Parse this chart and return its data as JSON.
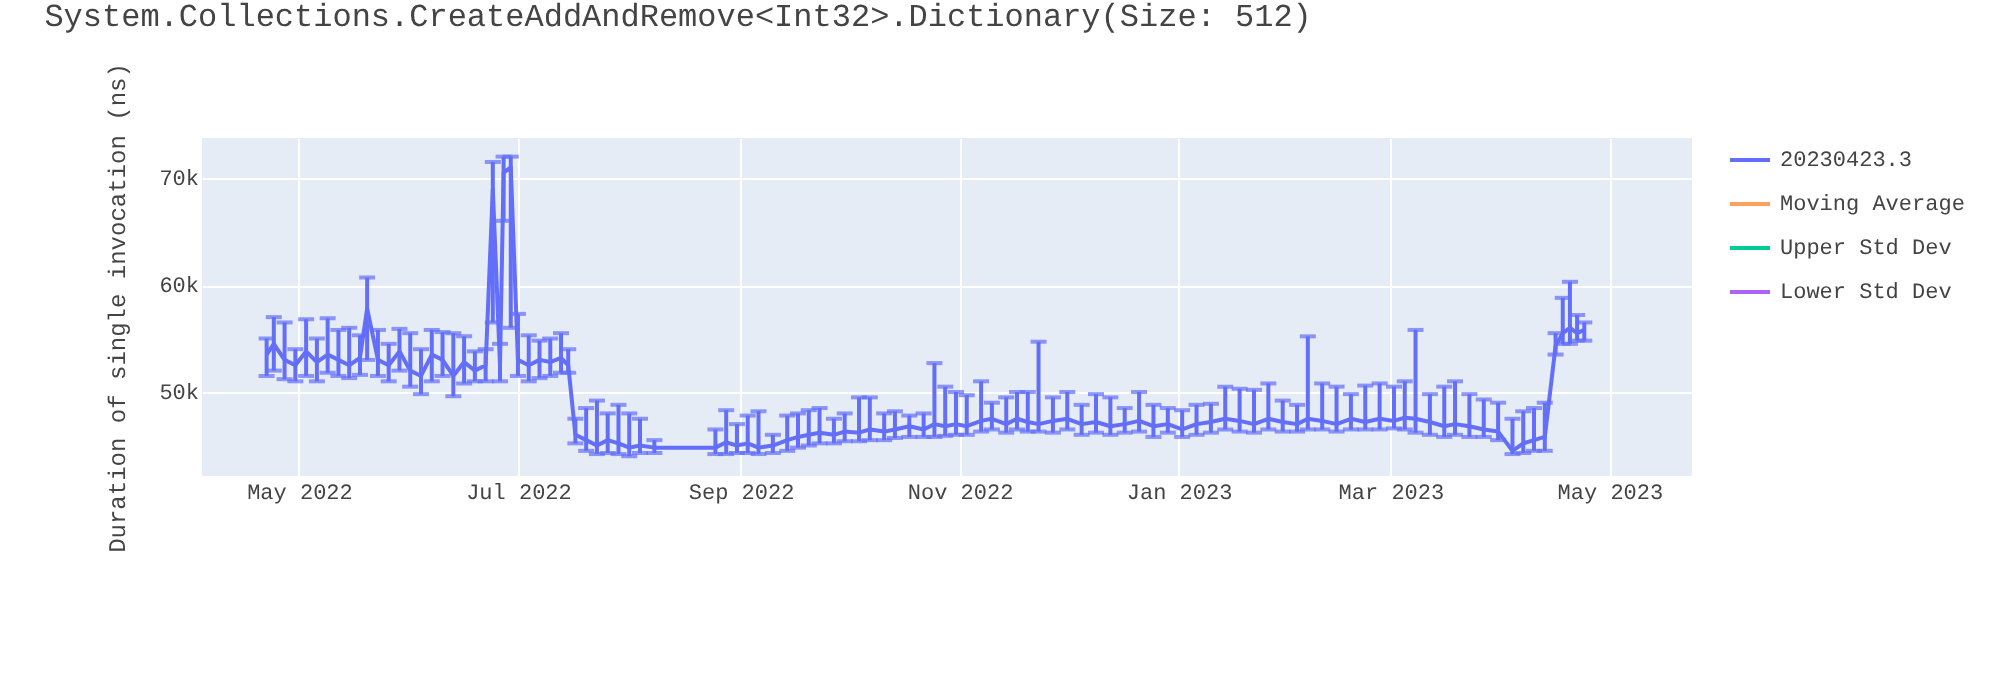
{
  "chart_data": {
    "type": "line",
    "title": "System.Collections.CreateAddAndRemove<Int32>.Dictionary(Size: 512)",
    "ylabel": "Duration of single invocation (ns)",
    "x": [
      "2022-04-22",
      "2022-04-24",
      "2022-04-27",
      "2022-04-30",
      "2022-05-03",
      "2022-05-06",
      "2022-05-09",
      "2022-05-12",
      "2022-05-15",
      "2022-05-18",
      "2022-05-20",
      "2022-05-23",
      "2022-05-26",
      "2022-05-29",
      "2022-06-01",
      "2022-06-04",
      "2022-06-07",
      "2022-06-10",
      "2022-06-13",
      "2022-06-16",
      "2022-06-19",
      "2022-06-22",
      "2022-06-24",
      "2022-06-26",
      "2022-06-27",
      "2022-06-29",
      "2022-07-01",
      "2022-07-04",
      "2022-07-07",
      "2022-07-10",
      "2022-07-13",
      "2022-07-15",
      "2022-07-17",
      "2022-07-20",
      "2022-07-23",
      "2022-07-26",
      "2022-07-29",
      "2022-08-01",
      "2022-08-04",
      "2022-08-08",
      "2022-08-25",
      "2022-08-28",
      "2022-08-31",
      "2022-09-03",
      "2022-09-06",
      "2022-09-10",
      "2022-09-14",
      "2022-09-17",
      "2022-09-20",
      "2022-09-23",
      "2022-09-27",
      "2022-09-30",
      "2022-10-04",
      "2022-10-07",
      "2022-10-11",
      "2022-10-14",
      "2022-10-18",
      "2022-10-22",
      "2022-10-25",
      "2022-10-28",
      "2022-10-31",
      "2022-11-03",
      "2022-11-07",
      "2022-11-10",
      "2022-11-14",
      "2022-11-17",
      "2022-11-20",
      "2022-11-23",
      "2022-11-27",
      "2022-12-01",
      "2022-12-05",
      "2022-12-09",
      "2022-12-13",
      "2022-12-17",
      "2022-12-21",
      "2022-12-25",
      "2022-12-29",
      "2023-01-02",
      "2023-01-06",
      "2023-01-10",
      "2023-01-14",
      "2023-01-18",
      "2023-01-22",
      "2023-01-26",
      "2023-01-30",
      "2023-02-03",
      "2023-02-06",
      "2023-02-10",
      "2023-02-14",
      "2023-02-18",
      "2023-02-22",
      "2023-02-26",
      "2023-03-02",
      "2023-03-05",
      "2023-03-08",
      "2023-03-12",
      "2023-03-16",
      "2023-03-19",
      "2023-03-23",
      "2023-03-27",
      "2023-03-31",
      "2023-04-04",
      "2023-04-07",
      "2023-04-10",
      "2023-04-13",
      "2023-04-16",
      "2023-04-18",
      "2023-04-20",
      "2023-04-22",
      "2023-04-24"
    ],
    "series": [
      {
        "name": "20230423.3",
        "color": "#636efa",
        "values": [
          53500,
          54500,
          53000,
          52500,
          53800,
          52800,
          53500,
          53000,
          52500,
          53200,
          57800,
          53000,
          52500,
          53800,
          52000,
          51500,
          53500,
          53000,
          51500,
          52800,
          52000,
          52500,
          69000,
          52500,
          70500,
          71000,
          53000,
          52500,
          53000,
          52800,
          53200,
          52500,
          46000,
          45500,
          45000,
          45500,
          45200,
          44800,
          45000,
          44800,
          44800,
          45300,
          45000,
          45200,
          44800,
          45000,
          45500,
          45800,
          46000,
          46200,
          46000,
          46300,
          46200,
          46500,
          46300,
          46500,
          46800,
          46500,
          47000,
          46800,
          47000,
          46800,
          47300,
          47500,
          47000,
          47500,
          47200,
          47000,
          47300,
          47500,
          47000,
          47200,
          46800,
          47000,
          47300,
          46800,
          47000,
          46500,
          47000,
          47200,
          47500,
          47300,
          47000,
          47500,
          47200,
          47000,
          47500,
          47300,
          47000,
          47500,
          47200,
          47500,
          47300,
          47600,
          47500,
          47200,
          46800,
          47000,
          46800,
          46500,
          46300,
          44500,
          45200,
          45500,
          45800,
          54300,
          55500,
          56000,
          55500,
          55800
        ],
        "errors": [
          [
            51500,
            55000
          ],
          [
            52000,
            57000
          ],
          [
            51200,
            56500
          ],
          [
            51000,
            54000
          ],
          [
            51500,
            56800
          ],
          [
            51000,
            55000
          ],
          [
            51800,
            56900
          ],
          [
            51500,
            55800
          ],
          [
            51300,
            56000
          ],
          [
            51600,
            55300
          ],
          [
            53000,
            60700
          ],
          [
            51500,
            55800
          ],
          [
            51000,
            54500
          ],
          [
            52000,
            55900
          ],
          [
            50500,
            55500
          ],
          [
            49800,
            54000
          ],
          [
            51000,
            55800
          ],
          [
            51500,
            55600
          ],
          [
            49600,
            55500
          ],
          [
            50800,
            55200
          ],
          [
            51000,
            53800
          ],
          [
            51000,
            54000
          ],
          [
            56500,
            71500
          ],
          [
            51000,
            54500
          ],
          [
            66000,
            72000
          ],
          [
            56000,
            72000
          ],
          [
            51500,
            57300
          ],
          [
            51000,
            55300
          ],
          [
            51300,
            54800
          ],
          [
            51500,
            55000
          ],
          [
            51800,
            55500
          ],
          [
            51800,
            54000
          ],
          [
            45200,
            47500
          ],
          [
            44500,
            48500
          ],
          [
            44200,
            49200
          ],
          [
            44300,
            48000
          ],
          [
            44200,
            48800
          ],
          [
            44000,
            48000
          ],
          [
            44300,
            47500
          ],
          [
            44300,
            45500
          ],
          [
            44200,
            46500
          ],
          [
            44200,
            48300
          ],
          [
            44300,
            47000
          ],
          [
            44300,
            47800
          ],
          [
            44200,
            48200
          ],
          [
            44300,
            46000
          ],
          [
            44500,
            47800
          ],
          [
            44800,
            48000
          ],
          [
            45000,
            48300
          ],
          [
            45200,
            48500
          ],
          [
            45200,
            47500
          ],
          [
            45400,
            48000
          ],
          [
            45400,
            49500
          ],
          [
            45500,
            49500
          ],
          [
            45500,
            48000
          ],
          [
            45700,
            48200
          ],
          [
            45800,
            47800
          ],
          [
            45800,
            48000
          ],
          [
            45800,
            52700
          ],
          [
            45900,
            50500
          ],
          [
            46000,
            50000
          ],
          [
            46000,
            49700
          ],
          [
            46300,
            51000
          ],
          [
            46500,
            49000
          ],
          [
            46200,
            49500
          ],
          [
            46500,
            50000
          ],
          [
            46300,
            50000
          ],
          [
            46300,
            54700
          ],
          [
            46200,
            49500
          ],
          [
            46500,
            50000
          ],
          [
            46000,
            48800
          ],
          [
            46200,
            49800
          ],
          [
            46000,
            49500
          ],
          [
            46200,
            48500
          ],
          [
            46300,
            50000
          ],
          [
            45800,
            48800
          ],
          [
            46200,
            48500
          ],
          [
            45800,
            48300
          ],
          [
            46000,
            48800
          ],
          [
            46200,
            48900
          ],
          [
            46500,
            50500
          ],
          [
            46300,
            50300
          ],
          [
            46200,
            50200
          ],
          [
            46500,
            50800
          ],
          [
            46300,
            49200
          ],
          [
            46300,
            48800
          ],
          [
            46500,
            55200
          ],
          [
            46500,
            50800
          ],
          [
            46300,
            50500
          ],
          [
            46500,
            49800
          ],
          [
            46500,
            50600
          ],
          [
            46500,
            50800
          ],
          [
            46600,
            50500
          ],
          [
            46500,
            51000
          ],
          [
            46200,
            55800
          ],
          [
            46000,
            49800
          ],
          [
            45800,
            50500
          ],
          [
            46000,
            51000
          ],
          [
            45800,
            49800
          ],
          [
            45800,
            49300
          ],
          [
            45500,
            49000
          ],
          [
            44200,
            47500
          ],
          [
            44300,
            48200
          ],
          [
            44500,
            48500
          ],
          [
            44500,
            49000
          ],
          [
            53500,
            55500
          ],
          [
            54500,
            58800
          ],
          [
            54500,
            60300
          ],
          [
            54800,
            57200
          ],
          [
            54800,
            56500
          ]
        ]
      },
      {
        "name": "Moving Average",
        "color": "#ffa15a",
        "values": [
          null,
          null,
          null,
          null,
          null,
          null,
          null,
          null,
          null,
          null,
          null,
          null,
          null,
          null,
          null,
          null,
          null,
          null,
          null,
          null,
          null,
          null,
          null,
          null,
          null,
          null,
          null,
          null,
          null,
          null,
          null,
          null,
          null,
          null,
          null,
          null,
          null,
          null,
          null,
          null,
          null,
          null,
          null,
          null,
          null,
          null,
          null,
          null,
          null,
          null,
          null,
          null,
          null,
          null,
          null,
          null,
          null,
          null,
          null,
          null,
          null,
          null,
          null,
          null,
          null,
          null,
          null,
          null,
          null,
          null,
          null,
          null,
          null,
          null,
          null,
          null,
          null,
          null,
          null,
          null,
          null,
          null,
          null,
          null,
          null,
          null,
          null,
          null,
          null,
          null,
          null,
          null,
          null,
          null,
          null,
          null,
          null,
          null,
          null,
          null,
          null,
          null,
          null,
          null,
          null,
          null,
          null,
          null,
          null,
          null
        ]
      },
      {
        "name": "Upper Std Dev",
        "color": "#00cc96",
        "values": [
          null,
          null,
          null,
          null,
          null,
          null,
          null,
          null,
          null,
          null,
          null,
          null,
          null,
          null,
          null,
          null,
          null,
          null,
          null,
          null,
          null,
          null,
          null,
          null,
          null,
          null,
          null,
          null,
          null,
          null,
          null,
          null,
          null,
          null,
          null,
          null,
          null,
          null,
          null,
          null,
          null,
          null,
          null,
          null,
          null,
          null,
          null,
          null,
          null,
          null,
          null,
          null,
          null,
          null,
          null,
          null,
          null,
          null,
          null,
          null,
          null,
          null,
          null,
          null,
          null,
          null,
          null,
          null,
          null,
          null,
          null,
          null,
          null,
          null,
          null,
          null,
          null,
          null,
          null,
          null,
          null,
          null,
          null,
          null,
          null,
          null,
          null,
          null,
          null,
          null,
          null,
          null,
          null,
          null,
          null,
          null,
          null,
          null,
          null,
          null,
          null,
          null,
          null,
          null,
          null,
          null,
          null,
          null,
          null,
          null
        ]
      },
      {
        "name": "Lower Std Dev",
        "color": "#ab63fa",
        "values": [
          null,
          null,
          null,
          null,
          null,
          null,
          null,
          null,
          null,
          null,
          null,
          null,
          null,
          null,
          null,
          null,
          null,
          null,
          null,
          null,
          null,
          null,
          null,
          null,
          null,
          null,
          null,
          null,
          null,
          null,
          null,
          null,
          null,
          null,
          null,
          null,
          null,
          null,
          null,
          null,
          null,
          null,
          null,
          null,
          null,
          null,
          null,
          null,
          null,
          null,
          null,
          null,
          null,
          null,
          null,
          null,
          null,
          null,
          null,
          null,
          null,
          null,
          null,
          null,
          null,
          null,
          null,
          null,
          null,
          null,
          null,
          null,
          null,
          null,
          null,
          null,
          null,
          null,
          null,
          null,
          null,
          null,
          null,
          null,
          null,
          null,
          null,
          null,
          null,
          null,
          null,
          null,
          null,
          null,
          null,
          null,
          null,
          null,
          null,
          null,
          null,
          null,
          null,
          null,
          null,
          null,
          null,
          null,
          null,
          null
        ]
      }
    ],
    "xlim": [
      "2022-04-04",
      "2023-05-24"
    ],
    "xticks": [
      {
        "value": "2022-05-01",
        "label": "May 2022"
      },
      {
        "value": "2022-07-01",
        "label": "Jul 2022"
      },
      {
        "value": "2022-09-01",
        "label": "Sep 2022"
      },
      {
        "value": "2022-11-01",
        "label": "Nov 2022"
      },
      {
        "value": "2023-01-01",
        "label": "Jan 2023"
      },
      {
        "value": "2023-03-01",
        "label": "Mar 2023"
      },
      {
        "value": "2023-05-01",
        "label": "May 2023"
      }
    ],
    "ylim": [
      42150,
      73740
    ],
    "yticks": [
      {
        "value": 50000,
        "label": "50k"
      },
      {
        "value": 60000,
        "label": "60k"
      },
      {
        "value": 70000,
        "label": "70k"
      }
    ],
    "grid": true,
    "legend": "top right",
    "marker": "none",
    "line_style": "solid"
  }
}
